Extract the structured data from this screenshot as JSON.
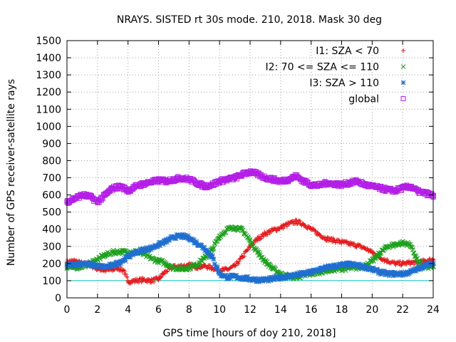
{
  "chart_data": {
    "type": "scatter",
    "title": "NRAYS. SISTED rt 30s mode. 210, 2018. Mask 30 deg",
    "xlabel": "GPS time [hours of doy 210, 2018]",
    "ylabel": "Number of GPS receiver-satellite rays",
    "xlim": [
      0,
      24
    ],
    "ylim": [
      0,
      1500
    ],
    "xticks": [
      0,
      2,
      4,
      6,
      8,
      10,
      12,
      14,
      16,
      18,
      20,
      22,
      24
    ],
    "yticks": [
      0,
      100,
      200,
      300,
      400,
      500,
      600,
      700,
      800,
      900,
      1000,
      1100,
      1200,
      1300,
      1400,
      1500
    ],
    "grid": true,
    "legend_position": "top-right",
    "reference_line": {
      "y": 100,
      "color": "#00c0c0"
    },
    "series": [
      {
        "name": "I1: SZA < 70",
        "marker": "plus",
        "color": "#e41a1c",
        "x": [
          0,
          0.5,
          1,
          1.5,
          2,
          2.5,
          3,
          3.3,
          3.7,
          4,
          4.5,
          5,
          5.5,
          6,
          6.3,
          6.7,
          7,
          7.5,
          8,
          8.5,
          9,
          9.5,
          10,
          10.5,
          11,
          11.5,
          12,
          12.5,
          13,
          13.5,
          14,
          14.5,
          15,
          15.5,
          16,
          16.5,
          17,
          17.5,
          18,
          18.5,
          19,
          19.5,
          20,
          20.5,
          21,
          21.5,
          22,
          22.5,
          23,
          23.5,
          24
        ],
        "y": [
          210,
          215,
          200,
          190,
          170,
          160,
          165,
          175,
          160,
          95,
          100,
          105,
          100,
          110,
          140,
          170,
          180,
          185,
          190,
          180,
          185,
          175,
          160,
          165,
          185,
          240,
          300,
          345,
          375,
          395,
          410,
          430,
          445,
          430,
          400,
          370,
          345,
          335,
          325,
          315,
          305,
          290,
          265,
          235,
          215,
          200,
          200,
          205,
          205,
          215,
          225
        ]
      },
      {
        "name": "I2: 70 <= SZA <= 110",
        "marker": "cross",
        "color": "#1ca01c",
        "x": [
          0,
          0.5,
          1,
          1.5,
          2,
          2.5,
          3,
          3.5,
          4,
          4.5,
          5,
          5.5,
          6,
          6.5,
          7,
          7.5,
          8,
          8.5,
          9,
          9.5,
          10,
          10.5,
          11,
          11.5,
          12,
          12.5,
          13,
          13.5,
          14,
          14.5,
          15,
          15.5,
          16,
          16.5,
          17,
          17.5,
          18,
          18.5,
          19,
          19.5,
          20,
          20.5,
          21,
          21.5,
          22,
          22.5,
          23,
          23.5,
          24
        ],
        "y": [
          180,
          175,
          185,
          200,
          225,
          250,
          265,
          270,
          265,
          270,
          255,
          230,
          215,
          200,
          175,
          170,
          175,
          195,
          230,
          280,
          360,
          400,
          410,
          395,
          330,
          265,
          210,
          170,
          140,
          125,
          120,
          130,
          140,
          150,
          160,
          165,
          170,
          172,
          175,
          185,
          215,
          260,
          300,
          310,
          320,
          310,
          210,
          180,
          180
        ]
      },
      {
        "name": "I3: SZA > 110",
        "marker": "star",
        "color": "#1f6fd0",
        "x": [
          0,
          0.5,
          1,
          1.5,
          2,
          2.5,
          3,
          3.5,
          4,
          4.5,
          5,
          5.5,
          6,
          6.5,
          7,
          7.5,
          8,
          8.5,
          9,
          9.5,
          10,
          10.5,
          11,
          11.5,
          12,
          12.5,
          13,
          13.5,
          14,
          14.5,
          15,
          15.5,
          16,
          16.5,
          17,
          17.5,
          18,
          18.5,
          19,
          19.5,
          20,
          20.5,
          21,
          21.5,
          22,
          22.5,
          23,
          23.5,
          24
        ],
        "y": [
          190,
          195,
          200,
          195,
          185,
          180,
          190,
          210,
          240,
          265,
          280,
          290,
          310,
          330,
          355,
          360,
          350,
          320,
          290,
          240,
          140,
          120,
          125,
          115,
          110,
          105,
          105,
          110,
          120,
          125,
          135,
          140,
          150,
          165,
          175,
          185,
          190,
          195,
          190,
          180,
          165,
          150,
          140,
          140,
          140,
          150,
          170,
          190,
          200
        ]
      },
      {
        "name": "global",
        "marker": "square",
        "color": "#b41ee6",
        "x": [
          0,
          0.5,
          1,
          1.5,
          2,
          2.5,
          3,
          3.5,
          4,
          4.5,
          5,
          5.5,
          6,
          6.5,
          7,
          7.5,
          8,
          8.5,
          9,
          9.5,
          10,
          10.5,
          11,
          11.5,
          12,
          12.5,
          13,
          13.5,
          14,
          14.5,
          15,
          15.5,
          16,
          16.5,
          17,
          17.5,
          18,
          18.5,
          19,
          19.5,
          20,
          20.5,
          21,
          21.5,
          22,
          22.5,
          23,
          23.5,
          24
        ],
        "y": [
          560,
          580,
          600,
          590,
          560,
          600,
          640,
          650,
          625,
          650,
          665,
          675,
          685,
          680,
          690,
          700,
          690,
          670,
          650,
          660,
          680,
          690,
          700,
          720,
          735,
          720,
          700,
          690,
          680,
          690,
          710,
          680,
          660,
          655,
          670,
          665,
          660,
          670,
          680,
          660,
          650,
          640,
          630,
          625,
          640,
          650,
          620,
          610,
          595
        ]
      }
    ]
  }
}
